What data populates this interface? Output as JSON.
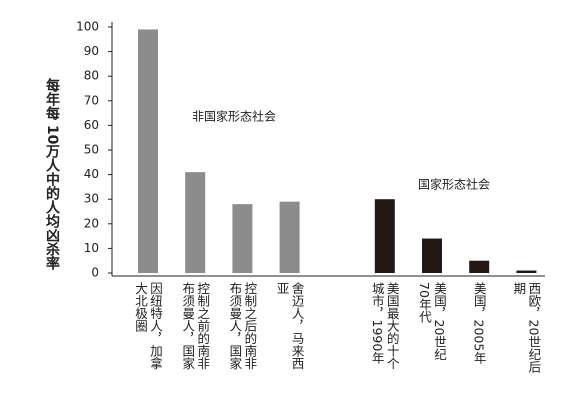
{
  "chart_data": {
    "type": "bar",
    "y_label": "每年每 10万人中的人均凶杀率",
    "annotations": [
      "非国家形态社会",
      "国家形态社会"
    ],
    "categories": [
      "因纽特人，加拿大北极圈",
      "控制之前的南非布须曼人，国家",
      "控制之后的南非布须曼人，国家",
      "舍迈人，马来西亚",
      "美国最大的十个城市，1990年",
      "美国，20世纪70年代",
      "美国，2005年",
      "西欧，20世纪后期"
    ],
    "values": [
      99,
      41,
      28,
      29,
      30,
      14,
      5,
      1
    ],
    "colors": [
      "#8c8c8c",
      "#8c8c8c",
      "#8c8c8c",
      "#8c8c8c",
      "#231815",
      "#231815",
      "#231815",
      "#231815"
    ],
    "ylim": [
      0,
      100
    ],
    "yticks": [
      0,
      10,
      20,
      30,
      40,
      50,
      60,
      70,
      80,
      90,
      100
    ]
  }
}
